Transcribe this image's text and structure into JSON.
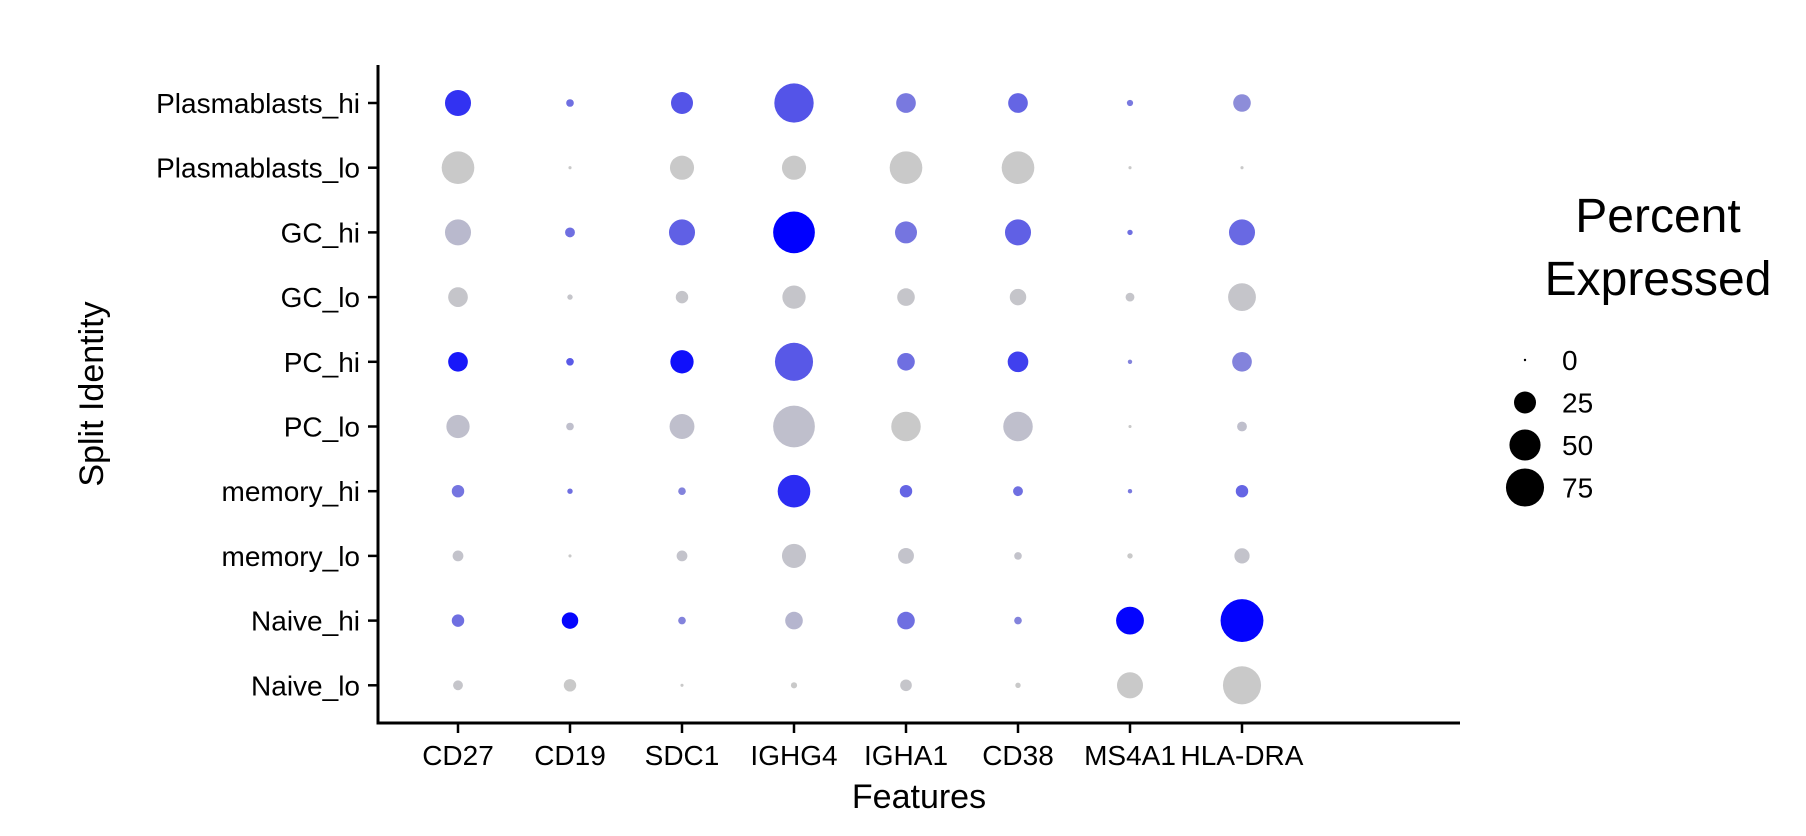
{
  "chart_data": {
    "type": "dotplot",
    "title": "",
    "xlabel": "Features",
    "ylabel": "Split Identity",
    "features": [
      "CD27",
      "CD19",
      "SDC1",
      "IGHG4",
      "IGHA1",
      "CD38",
      "MS4A1",
      "HLA-DRA"
    ],
    "identities": [
      "Plasmablasts_hi",
      "Plasmablasts_lo",
      "GC_hi",
      "GC_lo",
      "PC_hi",
      "PC_lo",
      "memory_hi",
      "memory_lo",
      "Naive_hi",
      "Naive_lo"
    ],
    "percent_expressed": [
      [
        35,
        3,
        25,
        80,
        20,
        20,
        2,
        16
      ],
      [
        55,
        0.5,
        30,
        30,
        55,
        55,
        0.5,
        0.5
      ],
      [
        35,
        5,
        35,
        90,
        25,
        35,
        1.5,
        35
      ],
      [
        20,
        1.5,
        8,
        28,
        16,
        14,
        4,
        40
      ],
      [
        20,
        3,
        28,
        75,
        16,
        22,
        1,
        20
      ],
      [
        28,
        3,
        32,
        90,
        45,
        45,
        0.5,
        5
      ],
      [
        8,
        1.5,
        3,
        55,
        8,
        5,
        1,
        8
      ],
      [
        6,
        0.5,
        6,
        30,
        13,
        3,
        1.5,
        12
      ],
      [
        8,
        14,
        3,
        16,
        16,
        3,
        40,
        95
      ],
      [
        5,
        8,
        0.5,
        2,
        7,
        1.5,
        35,
        75
      ]
    ],
    "color_scale": {
      "low": "#c9c9c9",
      "high": "#0000ff"
    },
    "color_intensity": [
      [
        0.75,
        0.45,
        0.58,
        0.58,
        0.4,
        0.5,
        0.4,
        0.3
      ],
      [
        0.0,
        0.0,
        0.0,
        0.0,
        0.0,
        0.0,
        0.0,
        0.0
      ],
      [
        0.08,
        0.45,
        0.52,
        1.0,
        0.42,
        0.52,
        0.45,
        0.48
      ],
      [
        0.02,
        0.02,
        0.02,
        0.02,
        0.02,
        0.02,
        0.02,
        0.02
      ],
      [
        0.88,
        0.55,
        0.92,
        0.56,
        0.45,
        0.68,
        0.35,
        0.35
      ],
      [
        0.05,
        0.05,
        0.05,
        0.05,
        0.0,
        0.05,
        0.0,
        0.05
      ],
      [
        0.42,
        0.45,
        0.35,
        0.78,
        0.5,
        0.45,
        0.4,
        0.5
      ],
      [
        0.03,
        0.0,
        0.03,
        0.03,
        0.03,
        0.03,
        0.0,
        0.03
      ],
      [
        0.45,
        0.97,
        0.35,
        0.1,
        0.45,
        0.35,
        0.98,
        0.98
      ],
      [
        0.02,
        0.0,
        0.0,
        0.0,
        0.02,
        0.0,
        0.0,
        0.0
      ]
    ],
    "legend": {
      "title_lines": [
        "Percent",
        "Expressed"
      ],
      "values": [
        0,
        25,
        50,
        75
      ],
      "placement": "right"
    },
    "grid": false
  }
}
